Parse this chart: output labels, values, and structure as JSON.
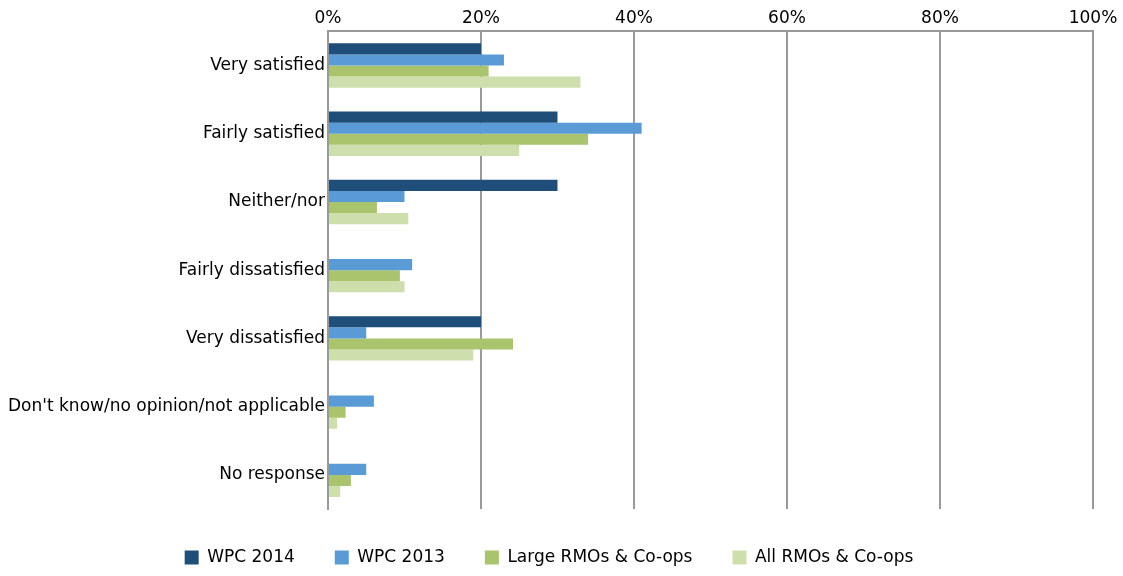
{
  "chart_data": {
    "type": "bar",
    "orientation": "horizontal",
    "categories": [
      "Very satisfied",
      "Fairly satisfied",
      "Neither/nor",
      "Fairly dissatisfied",
      "Very dissatisfied",
      "Don't know/no opinion/not applicable",
      "No response"
    ],
    "series": [
      {
        "name": "WPC 2014",
        "color": "#1f4e79",
        "values": [
          20,
          30,
          30,
          0,
          20,
          0,
          0
        ]
      },
      {
        "name": "WPC 2013",
        "color": "#5b9bd5",
        "values": [
          23,
          41,
          10,
          11,
          5,
          6,
          5
        ]
      },
      {
        "name": "Large RMOs & Co-ops",
        "color": "#a9c46c",
        "values": [
          21,
          34,
          6.4,
          9.4,
          24.2,
          2.3,
          3
        ]
      },
      {
        "name": "All RMOs & Co-ops",
        "color": "#cedfad",
        "values": [
          33,
          25,
          10.5,
          10,
          19,
          1.2,
          1.6
        ]
      }
    ],
    "xlim": [
      0,
      100
    ],
    "xticks": [
      {
        "value": 0,
        "label": "0%"
      },
      {
        "value": 20,
        "label": "20%"
      },
      {
        "value": 40,
        "label": "40%"
      },
      {
        "value": 60,
        "label": "60%"
      },
      {
        "value": 80,
        "label": "80%"
      },
      {
        "value": 100,
        "label": "100%"
      }
    ],
    "grid": "x",
    "legend": "bottom"
  }
}
